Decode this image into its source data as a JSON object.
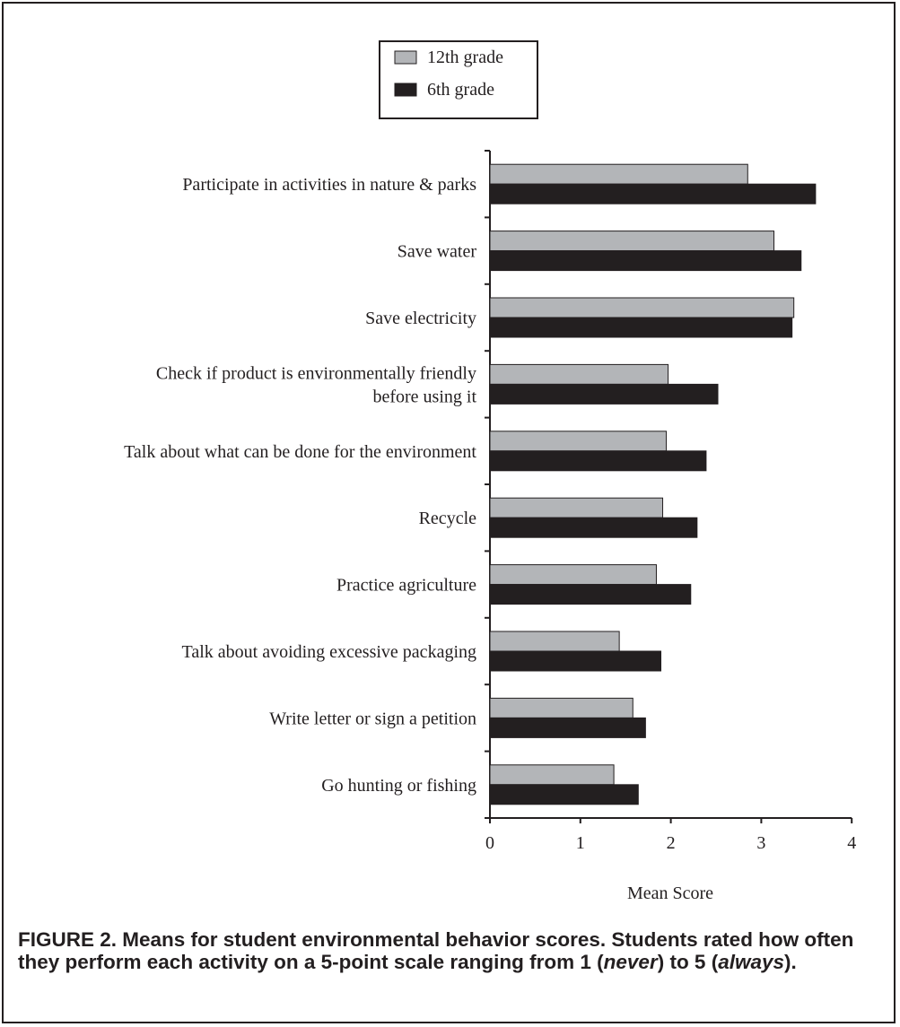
{
  "chart_data": {
    "type": "bar",
    "orientation": "horizontal",
    "categories": [
      [
        "Participate in activities in nature & parks"
      ],
      [
        "Save water"
      ],
      [
        "Save electricity"
      ],
      [
        "Check if product is environmentally friendly",
        "before using it"
      ],
      [
        "Talk about what can be done for the environment"
      ],
      [
        "Recycle"
      ],
      [
        "Practice agriculture"
      ],
      [
        "Talk about avoiding excessive packaging"
      ],
      [
        "Write letter or sign a petition"
      ],
      [
        "Go hunting or fishing"
      ]
    ],
    "series": [
      {
        "name": "12th grade",
        "color": "#b3b5b8",
        "values": [
          2.85,
          3.14,
          3.36,
          1.97,
          1.95,
          1.91,
          1.84,
          1.43,
          1.58,
          1.37
        ]
      },
      {
        "name": "6th grade",
        "color": "#231f20",
        "values": [
          3.6,
          3.44,
          3.34,
          2.52,
          2.39,
          2.29,
          2.22,
          1.89,
          1.72,
          1.64
        ]
      }
    ],
    "xlabel": "Mean Score",
    "ylabel": "",
    "xlim": [
      0,
      4
    ],
    "xticks": [
      "0",
      "1",
      "2",
      "3",
      "4"
    ],
    "grid": false,
    "legend_position": "top-left"
  },
  "caption": {
    "before_never": "FIGURE 2. Means for student environmental behavior scores. Students rated how often they perform each activity on a 5-point scale ranging from 1 (",
    "never": "never",
    "between": ") to 5 (",
    "always": "always",
    "after": ")."
  }
}
